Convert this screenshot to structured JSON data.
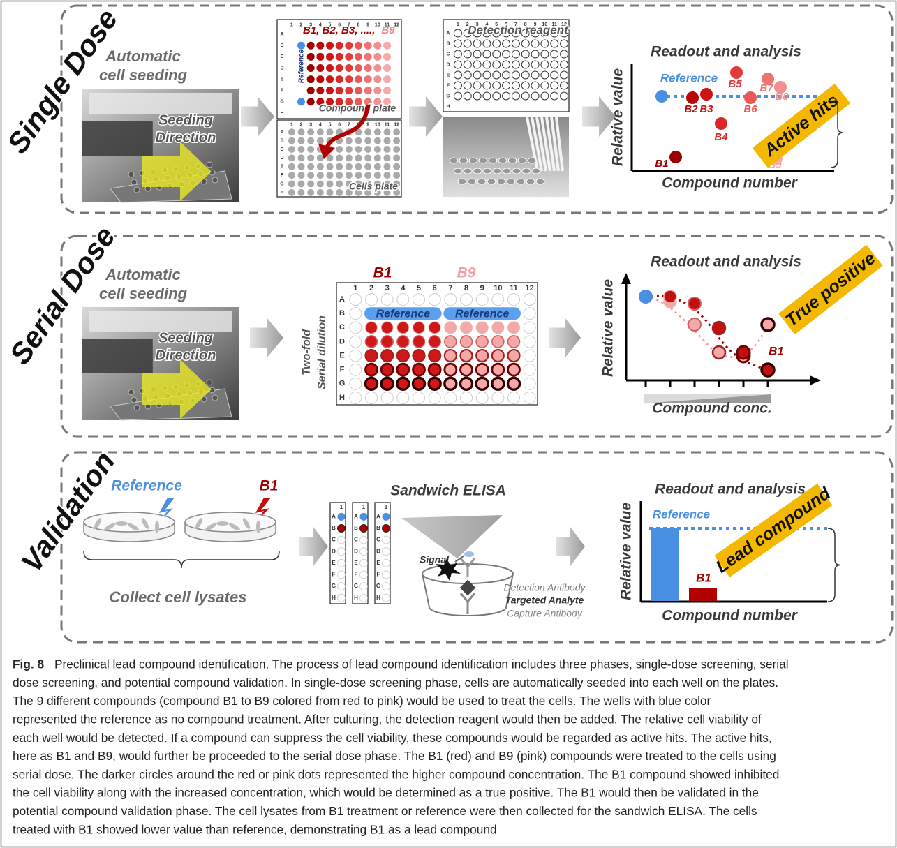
{
  "plate": {
    "columns": [
      "1",
      "2",
      "3",
      "4",
      "5",
      "6",
      "7",
      "8",
      "9",
      "10",
      "11",
      "12"
    ],
    "rows": [
      "A",
      "B",
      "C",
      "D",
      "E",
      "F",
      "G",
      "H"
    ]
  },
  "single_dose": {
    "label": "Single Dose",
    "seeding_title": [
      "Automatic",
      "cell seeding"
    ],
    "seeding_direction": [
      "Seeding",
      "Direction"
    ],
    "compound_series": "B1, B2, B3, ....,",
    "compound_last": "B9",
    "reference": "Reference",
    "compound_plate": "Compound plate",
    "cells_plate": "Cells plate",
    "detection_reagent": "Detection reagent",
    "readout": {
      "title": "Readout and analysis",
      "reference": "Reference",
      "y_label": "Relative value",
      "x_label": "Compound number",
      "points": [
        "B1",
        "B2",
        "B3",
        "B4",
        "B5",
        "B6",
        "B7",
        "B8",
        "B9"
      ],
      "callout": "Active hits"
    }
  },
  "serial_dose": {
    "label": "Serial Dose",
    "seeding_title": [
      "Automatic",
      "cell seeding"
    ],
    "seeding_direction": [
      "Seeding",
      "Direction"
    ],
    "compounds": [
      "B1",
      "B9"
    ],
    "references": [
      "Reference",
      "Reference"
    ],
    "dilution": [
      "Two-fold",
      "Serial dilution"
    ],
    "readout": {
      "title": "Readout and analysis",
      "y_label": "Relative value",
      "x_label": "Compound conc.",
      "callout": "True positive",
      "point": "B1"
    }
  },
  "validation": {
    "label": "Validation",
    "reference": "Reference",
    "compound": "B1",
    "collect": "Collect cell lysates",
    "elisa_title": "Sandwich ELISA",
    "signal": "Signal",
    "detection_antibody": "Detection Antibody",
    "targeted_analyte": "Targeted Analyte",
    "capture_antibody": "Capture Antibody",
    "readout": {
      "title": "Readout and analysis",
      "reference": "Reference",
      "y_label": "Relative value",
      "bar_label": "B1",
      "x_label": "Compound number",
      "callout": "Lead compound"
    }
  },
  "caption": {
    "label": "Fig. 8",
    "lines": [
      "Preclinical lead compound identification. The process of lead compound identification includes three phases, single-dose screening, serial",
      "dose screening, and potential compound validation. In single-dose screening phase, cells are automatically seeded into each well on the plates.",
      "The 9 different compounds (compound B1 to B9 colored from red to pink) would be used to treat the cells. The wells with blue color",
      "represented the reference as no compound treatment. After culturing, the detection reagent would then be added. The relative cell viability of",
      "each well would be detected. If a compound can suppress the cell viability, these compounds would be regarded as active hits. The active hits,",
      "here as B1 and B9, would further be proceeded to the serial dose phase. The B1 (red) and B9 (pink) compounds were treated to the cells using",
      "serial dose. The darker circles around the red or pink dots represented the higher compound concentration. The B1 compound showed inhibited",
      "the cell viability along with the increased concentration, which would be determined as a true positive. The B1 would then be validated in the",
      "potential compound validation phase. The cell lysates from B1 treatment or reference were then collected for the sandwich ELISA. The cells",
      "treated with B1 showed lower value than reference, demonstrating B1 as a lead compound"
    ]
  }
}
